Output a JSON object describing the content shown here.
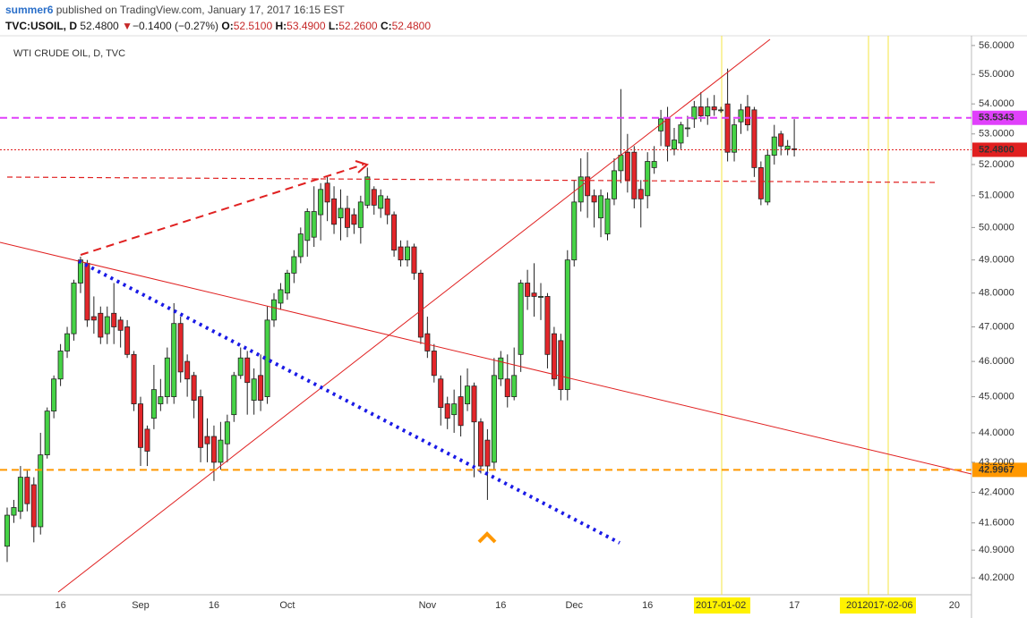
{
  "header": {
    "author": "summer6",
    "published": "published on TradingView.com, January 17, 2017 16:15 EST",
    "symbol": "TVC:USOIL, D",
    "last": "52.4800",
    "arrow": "▼",
    "change": "−0.1400 (−0.27%)",
    "o_label": "O:",
    "open": "52.5100",
    "h_label": "H:",
    "high": "53.4900",
    "l_label": "L:",
    "low": "52.2600",
    "c_label": "C:",
    "close": "52.4800"
  },
  "chart_data": {
    "type": "candlestick",
    "title": "WTI CRUDE OIL, D, TVC",
    "log": true,
    "up_color": "#46d346",
    "down_color": "#e3262a",
    "ylim": [
      39.78,
      56.34
    ],
    "yticks": [
      {
        "value": 56,
        "label": "56.0000"
      },
      {
        "value": 55,
        "label": "55.0000"
      },
      {
        "value": 54,
        "label": "54.0000"
      },
      {
        "value": 53,
        "label": "53.0000"
      },
      {
        "value": 52,
        "label": "52.0000"
      },
      {
        "value": 51,
        "label": "51.0000"
      },
      {
        "value": 50,
        "label": "50.0000"
      },
      {
        "value": 49,
        "label": "49.0000"
      },
      {
        "value": 48,
        "label": "48.0000"
      },
      {
        "value": 47,
        "label": "47.0000"
      },
      {
        "value": 46,
        "label": "46.0000"
      },
      {
        "value": 45,
        "label": "45.0000"
      },
      {
        "value": 44,
        "label": "44.0000"
      },
      {
        "value": 43.2,
        "label": "43.2000"
      },
      {
        "value": 42.4,
        "label": "42.4000"
      },
      {
        "value": 41.6,
        "label": "41.6000"
      },
      {
        "value": 40.9,
        "label": "40.9000"
      },
      {
        "value": 40.2,
        "label": "40.2000"
      }
    ],
    "price_lines": [
      {
        "value": 53.5343,
        "color": "#e040fb",
        "style": "dashed"
      },
      {
        "value": 52.48,
        "label": "52.4800",
        "color": "#e02020",
        "style": "dotted"
      },
      {
        "value": 42.9967,
        "label": "42.9967",
        "color": "#ff9800",
        "style": "dashed"
      }
    ],
    "categories": [
      null,
      null,
      null,
      null,
      null,
      null,
      null,
      null,
      "16",
      null,
      null,
      null,
      null,
      null,
      null,
      null,
      null,
      null,
      null,
      null,
      "Sep",
      null,
      null,
      null,
      null,
      null,
      null,
      null,
      null,
      null,
      null,
      "16",
      null,
      null,
      null,
      null,
      null,
      null,
      null,
      null,
      null,
      null,
      "Oct",
      null,
      null,
      null,
      null,
      null,
      null,
      null,
      null,
      null,
      null,
      null,
      null,
      null,
      null,
      null,
      null,
      null,
      null,
      null,
      null,
      "Nov",
      null,
      null,
      null,
      null,
      null,
      null,
      null,
      null,
      null,
      null,
      "16",
      null,
      null,
      null,
      null,
      null,
      null,
      null,
      null,
      null,
      null,
      "Dec",
      null,
      null,
      null,
      null,
      null,
      null,
      null,
      null,
      null,
      null,
      "16",
      null,
      null,
      null,
      null,
      null,
      null,
      null,
      null,
      null,
      null,
      "2017-01-02",
      null,
      null,
      null,
      null,
      null,
      null,
      null,
      null,
      null,
      null,
      "17",
      null,
      null,
      null,
      null,
      null,
      null,
      null,
      null,
      "201",
      null,
      null,
      null,
      null,
      "2017-02-06",
      null,
      null,
      null,
      null,
      null,
      null,
      null,
      null,
      null,
      "20",
      null,
      null
    ],
    "open": [
      41.0,
      41.8,
      41.9,
      42.8,
      42.6,
      41.5,
      43.4,
      44.6,
      45.5,
      46.3,
      46.8,
      48.3,
      48.9,
      47.3,
      47.4,
      46.8,
      47.4,
      47.2,
      47.0,
      46.2,
      44.8,
      44.1,
      44.4,
      44.8,
      45.0,
      45.0,
      47.1,
      46.0,
      45.6,
      45.0,
      43.9,
      43.9,
      43.2,
      43.7,
      44.5,
      45.6,
      46.1,
      44.9,
      45.6,
      45.0,
      47.2,
      47.7,
      48.0,
      48.6,
      49.1,
      49.6,
      49.7,
      50.4,
      51.4,
      50.9,
      50.3,
      50.6,
      50.4,
      50.0,
      50.7,
      51.2,
      50.6,
      50.9,
      50.4,
      49.4,
      49.0,
      49.4,
      48.6,
      46.8,
      46.3,
      45.5,
      44.8,
      44.5,
      45.0,
      44.8,
      45.3,
      44.3,
      43.8,
      43.2,
      45.5,
      45.5,
      45.0,
      46.2,
      48.3,
      48.0,
      47.9,
      47.9,
      46.8,
      46.6,
      45.2,
      49.0,
      50.8,
      51.6,
      51.0,
      50.3,
      49.8,
      50.9,
      51.8,
      52.4,
      52.4,
      51.2,
      51.0,
      51.9,
      53.1,
      53.5,
      52.5,
      52.7,
      53.2,
      53.5,
      53.9,
      53.6,
      53.9,
      53.8,
      54.0,
      52.4,
      53.4,
      53.9,
      53.8,
      51.9,
      50.8,
      52.3,
      53.0,
      52.5,
      52.51,
      null,
      null,
      null,
      null,
      null,
      null,
      null,
      null,
      null,
      null,
      null,
      null,
      null,
      null,
      null,
      null,
      null,
      null,
      null,
      null,
      null,
      null,
      null,
      null,
      null,
      null
    ],
    "high": [
      42.0,
      42.2,
      43.1,
      43.0,
      42.8,
      44.0,
      44.7,
      45.6,
      46.5,
      47.0,
      48.4,
      49.1,
      49.0,
      47.9,
      47.6,
      47.6,
      48.3,
      47.3,
      47.2,
      46.3,
      45.0,
      44.2,
      45.9,
      45.5,
      46.4,
      47.7,
      47.3,
      46.2,
      45.7,
      45.2,
      44.4,
      44.2,
      44.3,
      44.5,
      45.7,
      46.4,
      46.3,
      45.8,
      46.2,
      47.6,
      48.0,
      48.3,
      48.7,
      49.3,
      50.0,
      50.6,
      51.3,
      51.4,
      51.6,
      51.3,
      51.2,
      51.0,
      50.6,
      51.0,
      51.9,
      51.3,
      51.2,
      51.0,
      50.5,
      49.6,
      49.6,
      49.5,
      48.7,
      47.3,
      46.5,
      45.6,
      45.0,
      45.2,
      45.6,
      45.8,
      45.4,
      44.4,
      44.1,
      46.1,
      46.3,
      46.2,
      46.4,
      48.4,
      48.7,
      48.9,
      48.3,
      48.0,
      47.0,
      46.8,
      49.3,
      51.5,
      52.2,
      52.4,
      51.2,
      51.2,
      51.1,
      52.2,
      54.5,
      53.0,
      52.6,
      51.5,
      52.4,
      52.6,
      53.8,
      53.9,
      53.2,
      53.4,
      53.6,
      54.1,
      54.4,
      54.2,
      54.3,
      53.9,
      55.2,
      53.5,
      54.0,
      54.3,
      53.9,
      52.1,
      52.5,
      53.3,
      53.1,
      52.8,
      53.49,
      null,
      null,
      null,
      null,
      null,
      null,
      null,
      null,
      null,
      null,
      null,
      null,
      null,
      null,
      null,
      null,
      null,
      null,
      null,
      null,
      null,
      null,
      null,
      null,
      null,
      null
    ],
    "low": [
      40.6,
      41.6,
      41.7,
      41.9,
      41.1,
      41.3,
      43.3,
      44.4,
      45.3,
      46.1,
      46.6,
      48.0,
      47.0,
      46.8,
      46.5,
      46.5,
      46.5,
      46.4,
      46.1,
      44.6,
      43.1,
      43.1,
      44.1,
      44.6,
      44.8,
      44.8,
      45.4,
      45.0,
      44.4,
      43.2,
      43.2,
      42.7,
      43.0,
      43.2,
      44.3,
      45.5,
      44.5,
      44.5,
      44.6,
      44.8,
      47.0,
      47.5,
      47.8,
      48.3,
      48.9,
      49.1,
      49.4,
      49.6,
      50.2,
      49.8,
      49.6,
      49.7,
      49.8,
      49.5,
      50.6,
      50.4,
      50.3,
      50.1,
      49.1,
      48.8,
      48.8,
      48.4,
      46.5,
      46.1,
      45.4,
      44.2,
      44.1,
      44.0,
      43.9,
      44.6,
      42.8,
      42.9,
      42.2,
      43.0,
      45.3,
      44.7,
      44.9,
      45.7,
      47.5,
      47.3,
      47.2,
      45.8,
      45.3,
      44.9,
      44.9,
      48.8,
      50.5,
      50.3,
      50.0,
      49.7,
      49.6,
      50.7,
      51.4,
      51.1,
      50.6,
      50.0,
      50.6,
      51.7,
      52.6,
      52.1,
      52.3,
      52.5,
      52.9,
      53.2,
      53.4,
      53.3,
      53.6,
      53.7,
      52.1,
      52.1,
      53.0,
      53.1,
      51.6,
      50.7,
      50.7,
      52.0,
      52.3,
      52.3,
      52.26,
      null,
      null,
      null,
      null,
      null,
      null,
      null,
      null,
      null,
      null,
      null,
      null,
      null,
      null,
      null,
      null,
      null,
      null,
      null,
      null,
      null,
      null,
      null,
      null,
      null,
      null
    ],
    "close": [
      41.8,
      42.0,
      42.8,
      42.1,
      41.5,
      43.4,
      44.6,
      45.5,
      46.3,
      46.8,
      48.3,
      49.0,
      47.2,
      47.2,
      46.7,
      47.3,
      47.0,
      46.9,
      46.2,
      44.8,
      43.6,
      43.5,
      45.2,
      45.0,
      46.1,
      47.1,
      45.7,
      45.5,
      44.9,
      43.6,
      43.7,
      43.2,
      43.8,
      44.3,
      45.6,
      46.1,
      45.4,
      45.5,
      44.9,
      47.2,
      47.8,
      48.1,
      48.6,
      49.1,
      49.8,
      50.5,
      50.5,
      51.2,
      50.8,
      50.1,
      50.6,
      50.0,
      50.1,
      50.8,
      51.6,
      50.7,
      51.0,
      50.4,
      49.3,
      49.0,
      49.4,
      48.6,
      46.7,
      46.3,
      45.6,
      44.7,
      44.4,
      44.8,
      44.2,
      45.3,
      44.3,
      43.1,
      43.1,
      45.6,
      46.1,
      45.0,
      45.6,
      48.3,
      47.9,
      47.9,
      47.9,
      46.2,
      45.5,
      45.2,
      49.0,
      50.8,
      51.6,
      51.0,
      50.8,
      51.0,
      50.9,
      51.8,
      52.3,
      51.5,
      50.9,
      50.9,
      52.1,
      52.1,
      53.5,
      52.6,
      52.8,
      53.3,
      53.2,
      53.9,
      53.6,
      53.9,
      53.8,
      53.8,
      52.4,
      53.3,
      53.8,
      53.3,
      51.9,
      50.9,
      52.3,
      52.9,
      52.6,
      52.6,
      52.48,
      null,
      null,
      null,
      null,
      null,
      null,
      null,
      null,
      null,
      null,
      null,
      null,
      null,
      null,
      null,
      null,
      null,
      null,
      null,
      null,
      null,
      null,
      null,
      null,
      null,
      null
    ]
  }
}
